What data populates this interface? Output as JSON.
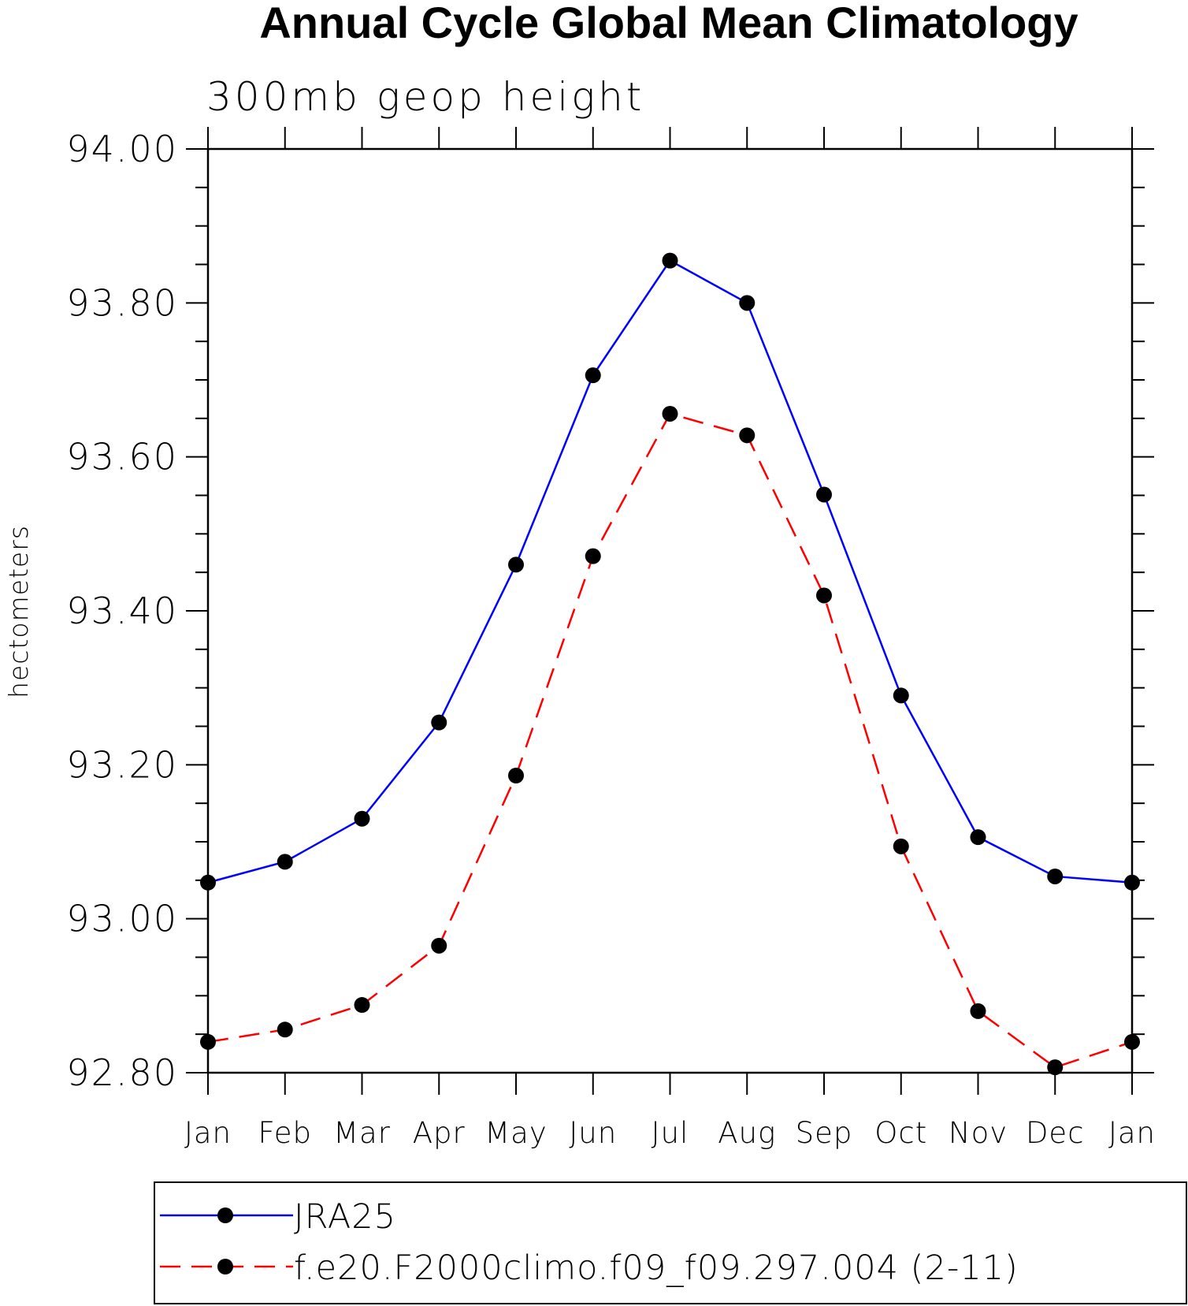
{
  "chart_data": {
    "type": "line",
    "title": "Annual Cycle Global Mean Climatology",
    "subtitle": "300mb geop height",
    "ylabel": "hectometers",
    "xlabel": "",
    "categories": [
      "Jan",
      "Feb",
      "Mar",
      "Apr",
      "May",
      "Jun",
      "Jul",
      "Aug",
      "Sep",
      "Oct",
      "Nov",
      "Dec",
      "Jan"
    ],
    "ylim": [
      92.8,
      94.0
    ],
    "yticks": [
      "92.80",
      "93.00",
      "93.20",
      "93.40",
      "93.60",
      "93.80",
      "94.00"
    ],
    "ymajor_step": 0.2,
    "yminor_step": 0.05,
    "grid": false,
    "legend_position": "bottom",
    "series": [
      {
        "name": "JRA25",
        "color": "#0000ff",
        "line_style": "solid",
        "marker": "filled-circle",
        "values": [
          93.047,
          93.074,
          93.13,
          93.255,
          93.46,
          93.706,
          93.855,
          93.8,
          93.551,
          93.29,
          93.106,
          93.055,
          93.047
        ]
      },
      {
        "name": "f.e20.F2000climo.f09_f09.297.004 (2-11)",
        "color": "#ff0000",
        "line_style": "dashed",
        "marker": "filled-circle",
        "values": [
          92.84,
          92.856,
          92.888,
          92.965,
          93.186,
          93.471,
          93.656,
          93.628,
          93.42,
          93.094,
          92.88,
          92.807,
          92.84
        ]
      }
    ]
  }
}
